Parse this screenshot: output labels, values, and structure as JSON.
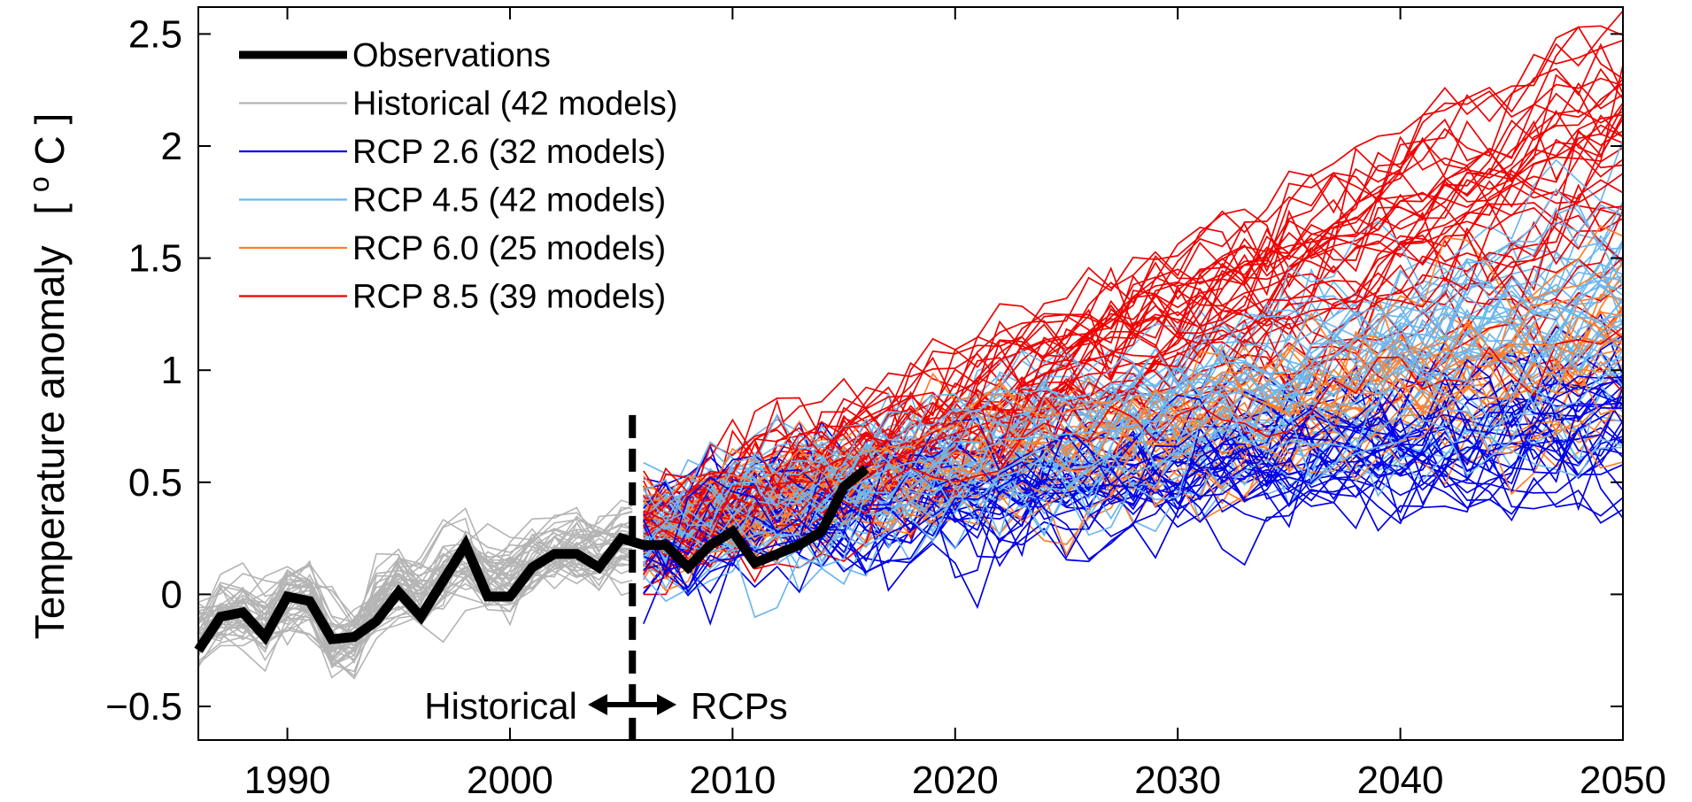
{
  "chart_data": {
    "type": "line",
    "title": "",
    "xlabel": "",
    "ylabel": "Temperature anomaly",
    "ylabel_unit_open": "[",
    "ylabel_unit_sup": "o",
    "ylabel_unit_letter": "C",
    "ylabel_unit_close": "]",
    "xlim": [
      1986,
      2050
    ],
    "ylim": [
      -0.65,
      2.62
    ],
    "xticks": [
      1990,
      2000,
      2010,
      2020,
      2030,
      2040,
      2050
    ],
    "xtick_labels": [
      "1990",
      "2000",
      "2010",
      "2020",
      "2030",
      "2040",
      "2050"
    ],
    "yticks": [
      -0.5,
      0,
      0.5,
      1,
      1.5,
      2,
      2.5
    ],
    "ytick_labels": [
      "−0.5",
      "0",
      "0.5",
      "1",
      "1.5",
      "2",
      "2.5"
    ],
    "grid": false,
    "legend_position": "top-left",
    "divider_year": 2005.5,
    "annotations": {
      "left": "Historical",
      "right": "RCPs"
    },
    "colors": {
      "observations": "#000000",
      "historical": "#b4b4b4",
      "rcp26": "#0000e6",
      "rcp45": "#6cb6ee",
      "rcp60": "#ff7f2a",
      "rcp85": "#ee0000"
    },
    "series": [
      {
        "name": "Observations",
        "key": "observations",
        "x": [
          1986,
          1987,
          1988,
          1989,
          1990,
          1991,
          1992,
          1993,
          1994,
          1995,
          1996,
          1997,
          1998,
          1999,
          2000,
          2001,
          2002,
          2003,
          2004,
          2005,
          2006,
          2007,
          2008,
          2009,
          2010,
          2011,
          2012,
          2013,
          2014,
          2015,
          2016
        ],
        "y": [
          -0.25,
          -0.1,
          -0.08,
          -0.19,
          -0.01,
          -0.03,
          -0.2,
          -0.19,
          -0.12,
          0.01,
          -0.1,
          0.06,
          0.22,
          -0.01,
          -0.01,
          0.12,
          0.18,
          0.18,
          0.12,
          0.25,
          0.22,
          0.22,
          0.12,
          0.22,
          0.28,
          0.14,
          0.18,
          0.22,
          0.28,
          0.48,
          0.56
        ]
      },
      {
        "name": "Historical (42 models)",
        "key": "historical",
        "model_count": 42,
        "x_range": [
          1986,
          2005.5
        ],
        "trend_start": -0.12,
        "trend_end": 0.27
      },
      {
        "name": "RCP 2.6 (32 models)",
        "key": "rcp26",
        "model_count": 32,
        "x_range": [
          2006,
          2050
        ],
        "trend_start": 0.27,
        "trend_end": 0.85
      },
      {
        "name": "RCP 4.5 (42 models)",
        "key": "rcp45",
        "model_count": 42,
        "x_range": [
          2006,
          2050
        ],
        "trend_start": 0.27,
        "trend_end": 1.25
      },
      {
        "name": "RCP 6.0 (25 models)",
        "key": "rcp60",
        "model_count": 25,
        "x_range": [
          2006,
          2050
        ],
        "trend_start": 0.27,
        "trend_end": 1.1
      },
      {
        "name": "RCP 8.5 (39 models)",
        "key": "rcp85",
        "model_count": 39,
        "x_range": [
          2006,
          2050
        ],
        "trend_start": 0.27,
        "trend_end": 2.0
      }
    ]
  }
}
